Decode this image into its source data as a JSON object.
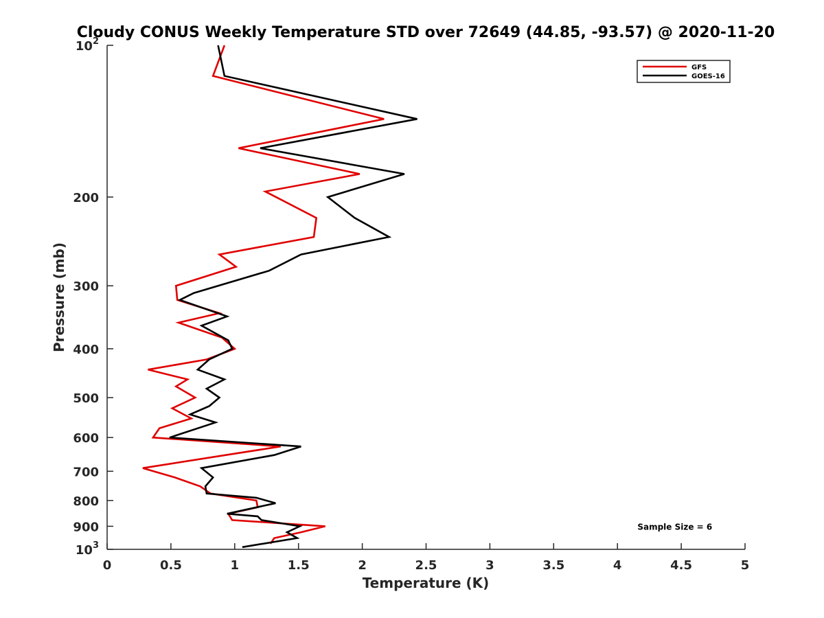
{
  "chart_data": {
    "type": "line",
    "title": "Cloudy CONUS Weekly Temperature STD over 72649 (44.85, -93.57) @ 2020-11-20",
    "xlabel": "Temperature (K)",
    "ylabel": "Pressure (mb)",
    "xlim": [
      0,
      5
    ],
    "ylim": [
      1000,
      100
    ],
    "y_scale": "log",
    "y_direction": "reversed",
    "grid": false,
    "legend_position": "top-right",
    "x_ticks": [
      {
        "value": 0,
        "label": "0"
      },
      {
        "value": 0.5,
        "label": "0.5"
      },
      {
        "value": 1,
        "label": "1"
      },
      {
        "value": 1.5,
        "label": "1.5"
      },
      {
        "value": 2,
        "label": "2"
      },
      {
        "value": 2.5,
        "label": "2.5"
      },
      {
        "value": 3,
        "label": "3"
      },
      {
        "value": 3.5,
        "label": "3.5"
      },
      {
        "value": 4,
        "label": "4"
      },
      {
        "value": 4.5,
        "label": "4.5"
      },
      {
        "value": 5,
        "label": "5"
      }
    ],
    "y_ticks": [
      {
        "value": 100,
        "label": "10",
        "sup": "2"
      },
      {
        "value": 200,
        "label": "200"
      },
      {
        "value": 300,
        "label": "300"
      },
      {
        "value": 400,
        "label": "400"
      },
      {
        "value": 500,
        "label": "500"
      },
      {
        "value": 600,
        "label": "600"
      },
      {
        "value": 700,
        "label": "700"
      },
      {
        "value": 800,
        "label": "800"
      },
      {
        "value": 900,
        "label": "900"
      },
      {
        "value": 1000,
        "label": "10",
        "sup": "3"
      }
    ],
    "series": [
      {
        "name": "GFS",
        "color": "#e00000",
        "points": [
          [
            0.92,
            100
          ],
          [
            0.83,
            115
          ],
          [
            2.17,
            140
          ],
          [
            1.03,
            160
          ],
          [
            1.98,
            180
          ],
          [
            1.24,
            195
          ],
          [
            1.64,
            220
          ],
          [
            1.62,
            240
          ],
          [
            0.88,
            260
          ],
          [
            1.01,
            275
          ],
          [
            0.54,
            300
          ],
          [
            0.55,
            320
          ],
          [
            0.88,
            340
          ],
          [
            0.56,
            355
          ],
          [
            0.9,
            380
          ],
          [
            1.0,
            400
          ],
          [
            0.78,
            420
          ],
          [
            0.32,
            440
          ],
          [
            0.63,
            460
          ],
          [
            0.54,
            475
          ],
          [
            0.69,
            500
          ],
          [
            0.51,
            525
          ],
          [
            0.66,
            550
          ],
          [
            0.41,
            575
          ],
          [
            0.36,
            600
          ],
          [
            1.36,
            625
          ],
          [
            0.93,
            650
          ],
          [
            0.28,
            690
          ],
          [
            0.53,
            720
          ],
          [
            0.73,
            750
          ],
          [
            0.81,
            775
          ],
          [
            1.17,
            800
          ],
          [
            1.18,
            825
          ],
          [
            0.95,
            850
          ],
          [
            0.98,
            875
          ],
          [
            1.71,
            900
          ],
          [
            1.52,
            925
          ],
          [
            1.31,
            950
          ],
          [
            1.28,
            975
          ]
        ]
      },
      {
        "name": "GOES-16",
        "color": "#000000",
        "points": [
          [
            0.87,
            100
          ],
          [
            0.92,
            115
          ],
          [
            2.43,
            140
          ],
          [
            1.2,
            160
          ],
          [
            2.33,
            180
          ],
          [
            1.73,
            200
          ],
          [
            1.94,
            220
          ],
          [
            2.21,
            240
          ],
          [
            1.52,
            260
          ],
          [
            1.27,
            280
          ],
          [
            0.68,
            310
          ],
          [
            0.57,
            320
          ],
          [
            0.94,
            345
          ],
          [
            0.74,
            360
          ],
          [
            0.95,
            385
          ],
          [
            0.98,
            400
          ],
          [
            0.8,
            420
          ],
          [
            0.71,
            440
          ],
          [
            0.92,
            460
          ],
          [
            0.78,
            480
          ],
          [
            0.88,
            500
          ],
          [
            0.8,
            520
          ],
          [
            0.65,
            540
          ],
          [
            0.85,
            560
          ],
          [
            0.49,
            600
          ],
          [
            1.52,
            625
          ],
          [
            1.31,
            650
          ],
          [
            0.74,
            690
          ],
          [
            0.83,
            720
          ],
          [
            0.77,
            750
          ],
          [
            0.78,
            775
          ],
          [
            1.17,
            790
          ],
          [
            1.32,
            810
          ],
          [
            0.94,
            850
          ],
          [
            1.18,
            860
          ],
          [
            1.21,
            875
          ],
          [
            1.51,
            900
          ],
          [
            1.41,
            925
          ],
          [
            1.49,
            950
          ],
          [
            1.06,
            990
          ]
        ]
      }
    ],
    "annotations": [
      {
        "text": "Sample Size = 6",
        "x": 4.45,
        "y": 900
      }
    ]
  }
}
